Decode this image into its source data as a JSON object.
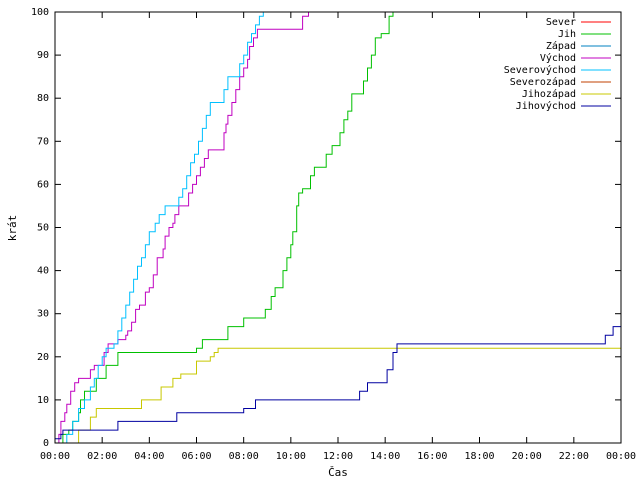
{
  "chart_data": {
    "type": "line",
    "xlabel": "Čas",
    "ylabel": "krát",
    "ylim": [
      0,
      100
    ],
    "xlim": [
      "00:00",
      "24:00"
    ],
    "x_ticks": [
      "00:00",
      "02:00",
      "04:00",
      "06:00",
      "08:00",
      "10:00",
      "12:00",
      "14:00",
      "16:00",
      "18:00",
      "20:00",
      "22:00",
      "00:00"
    ],
    "y_ticks": [
      "0",
      "10",
      "20",
      "30",
      "40",
      "50",
      "60",
      "70",
      "80",
      "90",
      "100"
    ],
    "grid": false,
    "legend_position": "top-right",
    "series": [
      {
        "name": "Sever",
        "color": "#ff0000",
        "points": []
      },
      {
        "name": "Jih",
        "color": "#00c000",
        "points": [
          [
            "00:00",
            0
          ],
          [
            "00:20",
            2
          ],
          [
            "00:35",
            3
          ],
          [
            "00:45",
            5
          ],
          [
            "01:00",
            7
          ],
          [
            "01:05",
            10
          ],
          [
            "01:15",
            12
          ],
          [
            "01:30",
            12
          ],
          [
            "01:45",
            15
          ],
          [
            "02:00",
            15
          ],
          [
            "02:10",
            18
          ],
          [
            "02:30",
            18
          ],
          [
            "02:40",
            21
          ],
          [
            "03:30",
            21
          ],
          [
            "05:30",
            21
          ],
          [
            "06:00",
            22
          ],
          [
            "06:15",
            24
          ],
          [
            "07:00",
            24
          ],
          [
            "07:20",
            27
          ],
          [
            "07:45",
            27
          ],
          [
            "08:00",
            29
          ],
          [
            "08:40",
            29
          ],
          [
            "08:55",
            31
          ],
          [
            "09:10",
            34
          ],
          [
            "09:20",
            36
          ],
          [
            "09:30",
            36
          ],
          [
            "09:40",
            40
          ],
          [
            "09:50",
            43
          ],
          [
            "10:00",
            46
          ],
          [
            "10:05",
            49
          ],
          [
            "10:15",
            55
          ],
          [
            "10:20",
            58
          ],
          [
            "10:30",
            59
          ],
          [
            "10:40",
            59
          ],
          [
            "10:50",
            62
          ],
          [
            "11:00",
            64
          ],
          [
            "11:20",
            64
          ],
          [
            "11:30",
            67
          ],
          [
            "11:45",
            69
          ],
          [
            "12:00",
            69
          ],
          [
            "12:05",
            72
          ],
          [
            "12:15",
            75
          ],
          [
            "12:25",
            77
          ],
          [
            "12:35",
            81
          ],
          [
            "12:45",
            81
          ],
          [
            "12:55",
            81
          ],
          [
            "13:05",
            84
          ],
          [
            "13:15",
            87
          ],
          [
            "13:25",
            90
          ],
          [
            "13:35",
            94
          ],
          [
            "13:50",
            95
          ],
          [
            "14:05",
            95
          ],
          [
            "14:10",
            99
          ],
          [
            "14:20",
            100
          ]
        ]
      },
      {
        "name": "Západ",
        "color": "#0080c0",
        "points": []
      },
      {
        "name": "Východ",
        "color": "#c000c0",
        "points": [
          [
            "00:00",
            0
          ],
          [
            "00:10",
            2
          ],
          [
            "00:15",
            5
          ],
          [
            "00:25",
            7
          ],
          [
            "00:30",
            9
          ],
          [
            "00:40",
            12
          ],
          [
            "00:50",
            14
          ],
          [
            "01:00",
            15
          ],
          [
            "01:20",
            15
          ],
          [
            "01:30",
            17
          ],
          [
            "01:40",
            18
          ],
          [
            "02:00",
            18
          ],
          [
            "02:05",
            21
          ],
          [
            "02:15",
            23
          ],
          [
            "02:30",
            23
          ],
          [
            "02:40",
            24
          ],
          [
            "03:00",
            25
          ],
          [
            "03:05",
            26
          ],
          [
            "03:15",
            28
          ],
          [
            "03:25",
            31
          ],
          [
            "03:35",
            32
          ],
          [
            "03:50",
            35
          ],
          [
            "04:00",
            36
          ],
          [
            "04:10",
            39
          ],
          [
            "04:20",
            43
          ],
          [
            "04:35",
            45
          ],
          [
            "04:40",
            48
          ],
          [
            "04:50",
            50
          ],
          [
            "05:00",
            51
          ],
          [
            "05:05",
            53
          ],
          [
            "05:15",
            55
          ],
          [
            "05:30",
            55
          ],
          [
            "05:40",
            58
          ],
          [
            "05:50",
            60
          ],
          [
            "06:00",
            62
          ],
          [
            "06:10",
            64
          ],
          [
            "06:20",
            66
          ],
          [
            "06:30",
            68
          ],
          [
            "07:00",
            68
          ],
          [
            "07:10",
            72
          ],
          [
            "07:15",
            74
          ],
          [
            "07:20",
            76
          ],
          [
            "07:30",
            79
          ],
          [
            "07:40",
            82
          ],
          [
            "07:50",
            85
          ],
          [
            "08:00",
            87
          ],
          [
            "08:10",
            89
          ],
          [
            "08:15",
            92
          ],
          [
            "08:25",
            94
          ],
          [
            "08:35",
            96
          ],
          [
            "09:00",
            96
          ],
          [
            "10:20",
            96
          ],
          [
            "10:30",
            99
          ],
          [
            "10:45",
            100
          ],
          [
            "11:00",
            100
          ]
        ]
      },
      {
        "name": "Severovýchod",
        "color": "#00c0ff",
        "points": [
          [
            "00:00",
            0
          ],
          [
            "00:30",
            2
          ],
          [
            "00:45",
            5
          ],
          [
            "01:00",
            8
          ],
          [
            "01:15",
            10
          ],
          [
            "01:30",
            13
          ],
          [
            "01:40",
            15
          ],
          [
            "01:50",
            18
          ],
          [
            "02:00",
            20
          ],
          [
            "02:10",
            22
          ],
          [
            "02:30",
            23
          ],
          [
            "02:40",
            26
          ],
          [
            "02:50",
            29
          ],
          [
            "03:00",
            32
          ],
          [
            "03:10",
            35
          ],
          [
            "03:20",
            38
          ],
          [
            "03:30",
            41
          ],
          [
            "03:40",
            43
          ],
          [
            "03:50",
            46
          ],
          [
            "04:00",
            49
          ],
          [
            "04:15",
            51
          ],
          [
            "04:25",
            53
          ],
          [
            "04:40",
            55
          ],
          [
            "05:00",
            55
          ],
          [
            "05:15",
            57
          ],
          [
            "05:25",
            59
          ],
          [
            "05:35",
            62
          ],
          [
            "05:45",
            65
          ],
          [
            "05:55",
            67
          ],
          [
            "06:05",
            70
          ],
          [
            "06:15",
            73
          ],
          [
            "06:25",
            76
          ],
          [
            "06:35",
            79
          ],
          [
            "06:55",
            79
          ],
          [
            "07:10",
            82
          ],
          [
            "07:20",
            85
          ],
          [
            "07:40",
            85
          ],
          [
            "07:50",
            88
          ],
          [
            "08:00",
            90
          ],
          [
            "08:10",
            93
          ],
          [
            "08:20",
            95
          ],
          [
            "08:30",
            97
          ],
          [
            "08:40",
            99
          ],
          [
            "08:50",
            100
          ],
          [
            "09:00",
            100
          ]
        ]
      },
      {
        "name": "Severozápad",
        "color": "#c04000",
        "points": []
      },
      {
        "name": "Jihozápad",
        "color": "#c8c800",
        "points": [
          [
            "00:00",
            0
          ],
          [
            "01:00",
            3
          ],
          [
            "01:30",
            6
          ],
          [
            "01:45",
            8
          ],
          [
            "02:30",
            8
          ],
          [
            "03:30",
            8
          ],
          [
            "03:40",
            10
          ],
          [
            "04:20",
            10
          ],
          [
            "04:30",
            13
          ],
          [
            "05:00",
            15
          ],
          [
            "05:20",
            16
          ],
          [
            "05:50",
            16
          ],
          [
            "06:00",
            19
          ],
          [
            "06:30",
            19
          ],
          [
            "06:35",
            20
          ],
          [
            "06:45",
            21
          ],
          [
            "06:55",
            22
          ],
          [
            "09:00",
            22
          ],
          [
            "12:00",
            22
          ],
          [
            "14:00",
            22
          ],
          [
            "24:00",
            22
          ]
        ]
      },
      {
        "name": "Jihovýchod",
        "color": "#0000a0",
        "points": [
          [
            "00:00",
            1
          ],
          [
            "00:15",
            2
          ],
          [
            "00:20",
            3
          ],
          [
            "01:00",
            3
          ],
          [
            "02:00",
            3
          ],
          [
            "02:40",
            5
          ],
          [
            "04:00",
            5
          ],
          [
            "05:10",
            7
          ],
          [
            "06:00",
            7
          ],
          [
            "08:00",
            8
          ],
          [
            "08:30",
            10
          ],
          [
            "10:00",
            10
          ],
          [
            "12:00",
            10
          ],
          [
            "12:55",
            12
          ],
          [
            "13:15",
            14
          ],
          [
            "13:45",
            14
          ],
          [
            "14:05",
            17
          ],
          [
            "14:20",
            21
          ],
          [
            "14:30",
            23
          ],
          [
            "16:00",
            23
          ],
          [
            "18:00",
            23
          ],
          [
            "20:00",
            23
          ],
          [
            "22:00",
            23
          ],
          [
            "23:20",
            25
          ],
          [
            "23:40",
            27
          ],
          [
            "24:00",
            27
          ]
        ]
      }
    ]
  }
}
